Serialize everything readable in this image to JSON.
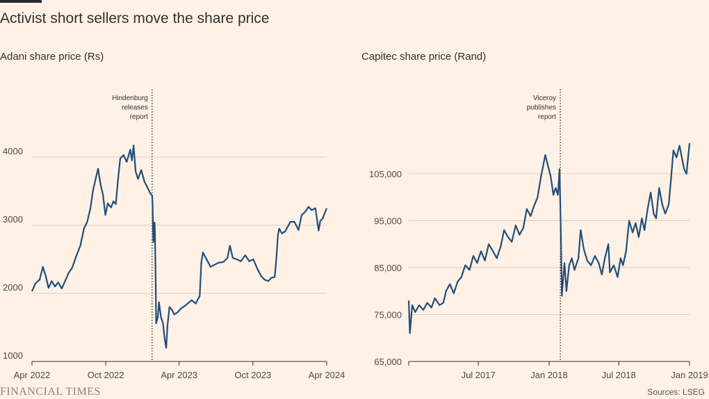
{
  "title": "Activist short sellers move the share price",
  "footer": {
    "brand": "FINANCIAL TIMES",
    "source": "Sources: LSEG"
  },
  "colors": {
    "background": "#fff1e5",
    "line": "#1f4e79",
    "grid": "#d9cfc6",
    "axis": "#33302e"
  },
  "chart_data": [
    {
      "type": "line",
      "subtitle": "Adani share price (Rs)",
      "ylim": [
        1000,
        4200
      ],
      "yticks": [
        {
          "v": 1000,
          "label": "1000"
        },
        {
          "v": 2000,
          "label": "2000"
        },
        {
          "v": 3000,
          "label": "3000"
        },
        {
          "v": 4000,
          "label": "4000"
        }
      ],
      "xlim": [
        "2022-04-01",
        "2024-04-01"
      ],
      "xticks": [
        {
          "x": "2022-04-01",
          "label": "Apr 2022"
        },
        {
          "x": "2022-10-01",
          "label": "Oct 2022"
        },
        {
          "x": "2023-04-01",
          "label": "Apr 2023"
        },
        {
          "x": "2023-10-01",
          "label": "Oct 2023"
        },
        {
          "x": "2024-04-01",
          "label": "Apr 2024"
        }
      ],
      "annotation": {
        "x": "2023-01-24",
        "lines": [
          "Hindenburg",
          "releases",
          "report"
        ]
      },
      "series": [
        {
          "values": [
            [
              "2022-04-01",
              2030
            ],
            [
              "2022-04-10",
              2150
            ],
            [
              "2022-04-20",
              2200
            ],
            [
              "2022-04-28",
              2390
            ],
            [
              "2022-05-05",
              2260
            ],
            [
              "2022-05-12",
              2080
            ],
            [
              "2022-05-20",
              2180
            ],
            [
              "2022-05-28",
              2100
            ],
            [
              "2022-06-05",
              2160
            ],
            [
              "2022-06-14",
              2070
            ],
            [
              "2022-06-22",
              2180
            ],
            [
              "2022-07-01",
              2300
            ],
            [
              "2022-07-10",
              2380
            ],
            [
              "2022-07-20",
              2550
            ],
            [
              "2022-07-30",
              2700
            ],
            [
              "2022-08-08",
              2950
            ],
            [
              "2022-08-16",
              3050
            ],
            [
              "2022-08-24",
              3250
            ],
            [
              "2022-08-30",
              3500
            ],
            [
              "2022-09-06",
              3680
            ],
            [
              "2022-09-12",
              3830
            ],
            [
              "2022-09-18",
              3600
            ],
            [
              "2022-09-24",
              3450
            ],
            [
              "2022-09-30",
              3150
            ],
            [
              "2022-10-06",
              3320
            ],
            [
              "2022-10-14",
              3260
            ],
            [
              "2022-10-20",
              3350
            ],
            [
              "2022-10-26",
              3310
            ],
            [
              "2022-11-01",
              3700
            ],
            [
              "2022-11-06",
              3980
            ],
            [
              "2022-11-14",
              4030
            ],
            [
              "2022-11-22",
              3930
            ],
            [
              "2022-12-01",
              4110
            ],
            [
              "2022-12-05",
              3950
            ],
            [
              "2022-12-09",
              4170
            ],
            [
              "2022-12-14",
              3790
            ],
            [
              "2022-12-20",
              3680
            ],
            [
              "2022-12-28",
              3810
            ],
            [
              "2023-01-05",
              3640
            ],
            [
              "2023-01-12",
              3560
            ],
            [
              "2023-01-20",
              3460
            ],
            [
              "2023-01-24",
              3440
            ],
            [
              "2023-01-25",
              3350
            ],
            [
              "2023-01-27",
              2750
            ],
            [
              "2023-01-30",
              3040
            ],
            [
              "2023-01-31",
              2900
            ],
            [
              "2023-02-02",
              2100
            ],
            [
              "2023-02-03",
              1560
            ],
            [
              "2023-02-07",
              1650
            ],
            [
              "2023-02-10",
              1870
            ],
            [
              "2023-02-15",
              1650
            ],
            [
              "2023-02-20",
              1560
            ],
            [
              "2023-02-24",
              1340
            ],
            [
              "2023-02-28",
              1200
            ],
            [
              "2023-03-03",
              1520
            ],
            [
              "2023-03-08",
              1800
            ],
            [
              "2023-03-14",
              1760
            ],
            [
              "2023-03-20",
              1690
            ],
            [
              "2023-03-28",
              1720
            ],
            [
              "2023-04-06",
              1780
            ],
            [
              "2023-04-14",
              1810
            ],
            [
              "2023-04-24",
              1860
            ],
            [
              "2023-05-02",
              1900
            ],
            [
              "2023-05-12",
              1850
            ],
            [
              "2023-05-22",
              1960
            ],
            [
              "2023-05-26",
              2450
            ],
            [
              "2023-05-30",
              2600
            ],
            [
              "2023-06-08",
              2500
            ],
            [
              "2023-06-18",
              2390
            ],
            [
              "2023-06-28",
              2420
            ],
            [
              "2023-07-08",
              2450
            ],
            [
              "2023-07-20",
              2460
            ],
            [
              "2023-07-30",
              2520
            ],
            [
              "2023-08-05",
              2700
            ],
            [
              "2023-08-12",
              2520
            ],
            [
              "2023-08-22",
              2500
            ],
            [
              "2023-09-01",
              2470
            ],
            [
              "2023-09-12",
              2560
            ],
            [
              "2023-09-22",
              2470
            ],
            [
              "2023-10-02",
              2500
            ],
            [
              "2023-10-12",
              2360
            ],
            [
              "2023-10-22",
              2250
            ],
            [
              "2023-10-30",
              2200
            ],
            [
              "2023-11-08",
              2180
            ],
            [
              "2023-11-16",
              2230
            ],
            [
              "2023-11-24",
              2240
            ],
            [
              "2023-11-28",
              2500
            ],
            [
              "2023-12-02",
              2850
            ],
            [
              "2023-12-05",
              2950
            ],
            [
              "2023-12-12",
              2880
            ],
            [
              "2023-12-20",
              2910
            ],
            [
              "2024-01-02",
              3050
            ],
            [
              "2024-01-12",
              3050
            ],
            [
              "2024-01-22",
              2930
            ],
            [
              "2024-01-30",
              3150
            ],
            [
              "2024-02-08",
              3200
            ],
            [
              "2024-02-16",
              3270
            ],
            [
              "2024-02-24",
              3220
            ],
            [
              "2024-03-04",
              3250
            ],
            [
              "2024-03-12",
              2920
            ],
            [
              "2024-03-16",
              3060
            ],
            [
              "2024-03-22",
              3100
            ],
            [
              "2024-04-01",
              3250
            ]
          ]
        }
      ]
    },
    {
      "type": "line",
      "subtitle": "Capitec share price (Rand)",
      "ylim": [
        65000,
        115000
      ],
      "yticks": [
        {
          "v": 65000,
          "label": "65,000"
        },
        {
          "v": 75000,
          "label": "75,000"
        },
        {
          "v": 85000,
          "label": "85,000"
        },
        {
          "v": 95000,
          "label": "95,000"
        },
        {
          "v": 105000,
          "label": "105,000"
        }
      ],
      "xlim": [
        "2017-01-01",
        "2019-01-01"
      ],
      "xticks": [
        {
          "x": "2017-01-01",
          "label": ""
        },
        {
          "x": "2017-07-01",
          "label": "Jul 2017"
        },
        {
          "x": "2018-01-01",
          "label": "Jan 2018"
        },
        {
          "x": "2018-07-01",
          "label": "Jul 2018"
        },
        {
          "x": "2019-01-01",
          "label": "Jan 2019"
        }
      ],
      "annotation": {
        "x": "2018-01-30",
        "lines": [
          "Viceroy",
          "publishes",
          "report"
        ]
      },
      "series": [
        {
          "values": [
            [
              "2017-01-01",
              78000
            ],
            [
              "2017-01-04",
              71000
            ],
            [
              "2017-01-10",
              77000
            ],
            [
              "2017-01-18",
              75500
            ],
            [
              "2017-01-28",
              77000
            ],
            [
              "2017-02-08",
              76000
            ],
            [
              "2017-02-18",
              77500
            ],
            [
              "2017-03-01",
              76500
            ],
            [
              "2017-03-10",
              78500
            ],
            [
              "2017-03-22",
              77000
            ],
            [
              "2017-04-01",
              77500
            ],
            [
              "2017-04-08",
              80000
            ],
            [
              "2017-04-18",
              81500
            ],
            [
              "2017-04-28",
              79500
            ],
            [
              "2017-05-08",
              82000
            ],
            [
              "2017-05-18",
              83000
            ],
            [
              "2017-05-28",
              85500
            ],
            [
              "2017-06-08",
              84500
            ],
            [
              "2017-06-18",
              87500
            ],
            [
              "2017-06-28",
              86000
            ],
            [
              "2017-07-08",
              88500
            ],
            [
              "2017-07-18",
              86500
            ],
            [
              "2017-07-28",
              90000
            ],
            [
              "2017-08-08",
              88500
            ],
            [
              "2017-08-18",
              87000
            ],
            [
              "2017-08-28",
              89500
            ],
            [
              "2017-09-06",
              93000
            ],
            [
              "2017-09-16",
              91500
            ],
            [
              "2017-09-26",
              90500
            ],
            [
              "2017-10-06",
              94000
            ],
            [
              "2017-10-16",
              92000
            ],
            [
              "2017-10-26",
              93500
            ],
            [
              "2017-11-04",
              97500
            ],
            [
              "2017-11-14",
              96000
            ],
            [
              "2017-11-22",
              98000
            ],
            [
              "2017-12-02",
              100000
            ],
            [
              "2017-12-10",
              104000
            ],
            [
              "2017-12-16",
              106500
            ],
            [
              "2017-12-22",
              109000
            ],
            [
              "2017-12-28",
              107000
            ],
            [
              "2018-01-05",
              104500
            ],
            [
              "2018-01-12",
              100500
            ],
            [
              "2018-01-18",
              102000
            ],
            [
              "2018-01-24",
              100500
            ],
            [
              "2018-01-28",
              106000
            ],
            [
              "2018-01-30",
              99000
            ],
            [
              "2018-02-01",
              90000
            ],
            [
              "2018-02-03",
              79000
            ],
            [
              "2018-02-06",
              82000
            ],
            [
              "2018-02-10",
              86000
            ],
            [
              "2018-02-15",
              80000
            ],
            [
              "2018-02-22",
              85500
            ],
            [
              "2018-03-01",
              87000
            ],
            [
              "2018-03-08",
              84500
            ],
            [
              "2018-03-18",
              87000
            ],
            [
              "2018-03-24",
              93000
            ],
            [
              "2018-04-01",
              89000
            ],
            [
              "2018-04-10",
              86500
            ],
            [
              "2018-04-20",
              85500
            ],
            [
              "2018-04-30",
              87500
            ],
            [
              "2018-05-10",
              86000
            ],
            [
              "2018-05-18",
              83500
            ],
            [
              "2018-05-26",
              87000
            ],
            [
              "2018-06-04",
              90000
            ],
            [
              "2018-06-08",
              84000
            ],
            [
              "2018-06-18",
              85500
            ],
            [
              "2018-06-28",
              83000
            ],
            [
              "2018-07-06",
              87000
            ],
            [
              "2018-07-12",
              85500
            ],
            [
              "2018-07-20",
              88500
            ],
            [
              "2018-07-28",
              95000
            ],
            [
              "2018-08-06",
              92500
            ],
            [
              "2018-08-14",
              94500
            ],
            [
              "2018-08-22",
              91500
            ],
            [
              "2018-08-30",
              95500
            ],
            [
              "2018-09-06",
              93000
            ],
            [
              "2018-09-14",
              97500
            ],
            [
              "2018-09-22",
              101000
            ],
            [
              "2018-09-30",
              96500
            ],
            [
              "2018-10-06",
              95500
            ],
            [
              "2018-10-14",
              102000
            ],
            [
              "2018-10-22",
              98500
            ],
            [
              "2018-10-30",
              96500
            ],
            [
              "2018-11-08",
              98500
            ],
            [
              "2018-11-14",
              104000
            ],
            [
              "2018-11-20",
              110000
            ],
            [
              "2018-11-28",
              108500
            ],
            [
              "2018-12-06",
              111000
            ],
            [
              "2018-12-12",
              108500
            ],
            [
              "2018-12-18",
              106000
            ],
            [
              "2018-12-24",
              105000
            ],
            [
              "2019-01-01",
              111500
            ]
          ]
        }
      ]
    }
  ]
}
